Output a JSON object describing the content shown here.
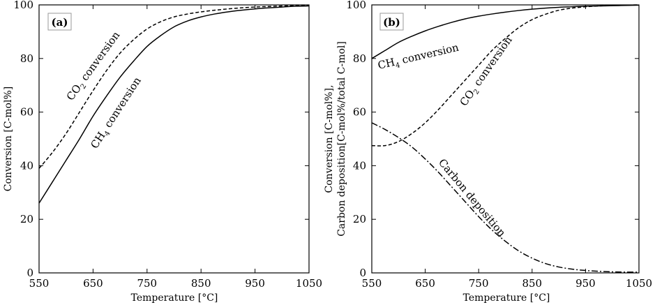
{
  "chart_data": [
    {
      "type": "line",
      "panel_label": "(a)",
      "xlabel": "Temperature [°C]",
      "ylabel": "Conversion [C-mol%]",
      "xlim": [
        550,
        1050
      ],
      "ylim": [
        0,
        100
      ],
      "x_ticks": [
        550,
        650,
        750,
        850,
        950,
        1050
      ],
      "y_ticks": [
        0,
        20,
        40,
        60,
        80,
        100
      ],
      "x": [
        550,
        575,
        600,
        625,
        650,
        675,
        700,
        725,
        750,
        775,
        800,
        825,
        850,
        875,
        900,
        925,
        950,
        975,
        1000,
        1025,
        1050
      ],
      "series": [
        {
          "name": "CO2 conversion",
          "label_main": "CO",
          "label_sub": "2",
          "label_rest": " conversion",
          "style": "dashed",
          "values": [
            39,
            45,
            52,
            60,
            68,
            75.5,
            82,
            87,
            91,
            93.7,
            95.5,
            96.6,
            97.4,
            98,
            98.5,
            98.9,
            99.2,
            99.4,
            99.6,
            99.7,
            99.8
          ]
        },
        {
          "name": "CH4 conversion",
          "label_main": "CH",
          "label_sub": "4",
          "label_rest": " conversion",
          "style": "solid",
          "values": [
            26,
            34,
            42,
            50,
            58.5,
            66,
            73,
            79,
            84.5,
            88.5,
            91.8,
            94,
            95.5,
            96.6,
            97.4,
            98,
            98.5,
            98.9,
            99.2,
            99.5,
            99.6
          ]
        }
      ]
    },
    {
      "type": "line",
      "panel_label": "(b)",
      "xlabel": "Temperature [°C]",
      "ylabel_line1": "Conversion [C-mol%],",
      "ylabel_line2": "Carbon deposition[C-mol%/total C-mol]",
      "xlim": [
        550,
        1050
      ],
      "ylim": [
        0,
        100
      ],
      "x_ticks": [
        550,
        650,
        750,
        850,
        950,
        1050
      ],
      "y_ticks": [
        0,
        20,
        40,
        60,
        80,
        100
      ],
      "x": [
        550,
        575,
        600,
        625,
        650,
        675,
        700,
        725,
        750,
        775,
        800,
        825,
        850,
        875,
        900,
        925,
        950,
        975,
        1000,
        1025,
        1050
      ],
      "series": [
        {
          "name": "CH4 conversion",
          "label_main": "CH",
          "label_sub": "4",
          "label_rest": " conversion",
          "style": "solid",
          "values": [
            80,
            83,
            86,
            88.3,
            90.3,
            92,
            93.5,
            94.8,
            95.8,
            96.6,
            97.3,
            97.9,
            98.4,
            98.8,
            99.1,
            99.3,
            99.5,
            99.6,
            99.7,
            99.8,
            99.9
          ]
        },
        {
          "name": "CO2 conversion",
          "label_main": "CO",
          "label_sub": "2",
          "label_rest": " conversion",
          "style": "dashed",
          "values": [
            47.5,
            47.5,
            49,
            52,
            56,
            61,
            66.5,
            72,
            77.5,
            83,
            87.5,
            91.5,
            94.5,
            96.5,
            98,
            98.8,
            99.3,
            99.6,
            99.8,
            99.9,
            100
          ]
        },
        {
          "name": "Carbon deposition",
          "label_main": "Carbon deposition",
          "label_sub": "",
          "label_rest": "",
          "style": "dashdot",
          "values": [
            56,
            53.5,
            50.5,
            47,
            42.5,
            37.5,
            32,
            26.5,
            21,
            16,
            11.8,
            8.2,
            5.5,
            3.5,
            2.2,
            1.4,
            0.9,
            0.6,
            0.4,
            0.3,
            0.3
          ]
        }
      ]
    }
  ]
}
